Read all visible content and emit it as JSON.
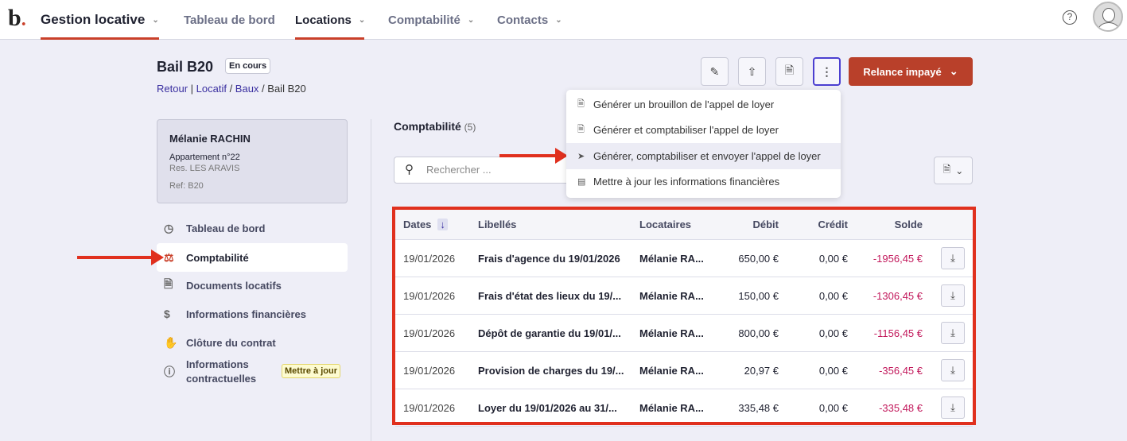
{
  "header": {
    "logo": "b",
    "app": "Gestion locative",
    "nav": [
      "Tableau de bord",
      "Locations",
      "Comptabilité",
      "Contacts"
    ],
    "active_nav": "Locations",
    "help": "?"
  },
  "page": {
    "title": "Bail B20",
    "status": "En cours",
    "breadcrumb": [
      "Retour",
      "Locatif",
      "Baux",
      "Bail B20"
    ]
  },
  "toolbar": {
    "relance": "Relance impayé",
    "icons": [
      "pencil-icon",
      "upload-icon",
      "document-icon",
      "more-vertical-icon"
    ]
  },
  "menu": {
    "items": [
      "Générer un brouillon de l'appel de loyer",
      "Générer et comptabiliser l'appel de loyer",
      "Générer, comptabiliser et envoyer l'appel de loyer",
      "Mettre à jour les informations financières"
    ],
    "highlighted": 2
  },
  "card": {
    "name": "Mélanie RACHIN",
    "unit": "Appartement n°22",
    "residence": "Res. LES ARAVIS",
    "ref": "Ref: B20"
  },
  "sidebar": {
    "items": [
      {
        "label": "Tableau de bord",
        "icon": "gauge-icon"
      },
      {
        "label": "Comptabilité",
        "icon": "scales-icon",
        "active": true
      },
      {
        "label": "Documents locatifs",
        "icon": "file-icon"
      },
      {
        "label": "Informations financières",
        "icon": "money-bag-icon"
      },
      {
        "label": "Clôture du contrat",
        "icon": "handshake-icon"
      },
      {
        "label1": "Informations",
        "label2": "contractuelles",
        "icon": "info-icon",
        "badge": "Mettre à jour"
      }
    ]
  },
  "section": {
    "title": "Comptabilité",
    "count": "(5)",
    "search_placeholder": "Rechercher ..."
  },
  "table": {
    "headers": [
      "Dates",
      "Libellés",
      "Locataires",
      "Débit",
      "Crédit",
      "Solde"
    ],
    "rows": [
      [
        "19/01/2026",
        "Frais d'agence du 19/01/2026",
        "Mélanie RA...",
        "650,00 €",
        "0,00 €",
        "-1956,45 €"
      ],
      [
        "19/01/2026",
        "Frais d'état des lieux du 19/...",
        "Mélanie RA...",
        "150,00 €",
        "0,00 €",
        "-1306,45 €"
      ],
      [
        "19/01/2026",
        "Dépôt de garantie du 19/01/...",
        "Mélanie RA...",
        "800,00 €",
        "0,00 €",
        "-1156,45 €"
      ],
      [
        "19/01/2026",
        "Provision de charges du 19/...",
        "Mélanie RA...",
        "20,97 €",
        "0,00 €",
        "-356,45 €"
      ],
      [
        "19/01/2026",
        "Loyer du 19/01/2026 au 31/...",
        "Mélanie RA...",
        "335,48 €",
        "0,00 €",
        "-335,48 €"
      ]
    ]
  },
  "colors": {
    "accent": "#c9402a",
    "negative": "#c2185b",
    "link": "#3a2fa0",
    "annotation": "#e0301e"
  }
}
